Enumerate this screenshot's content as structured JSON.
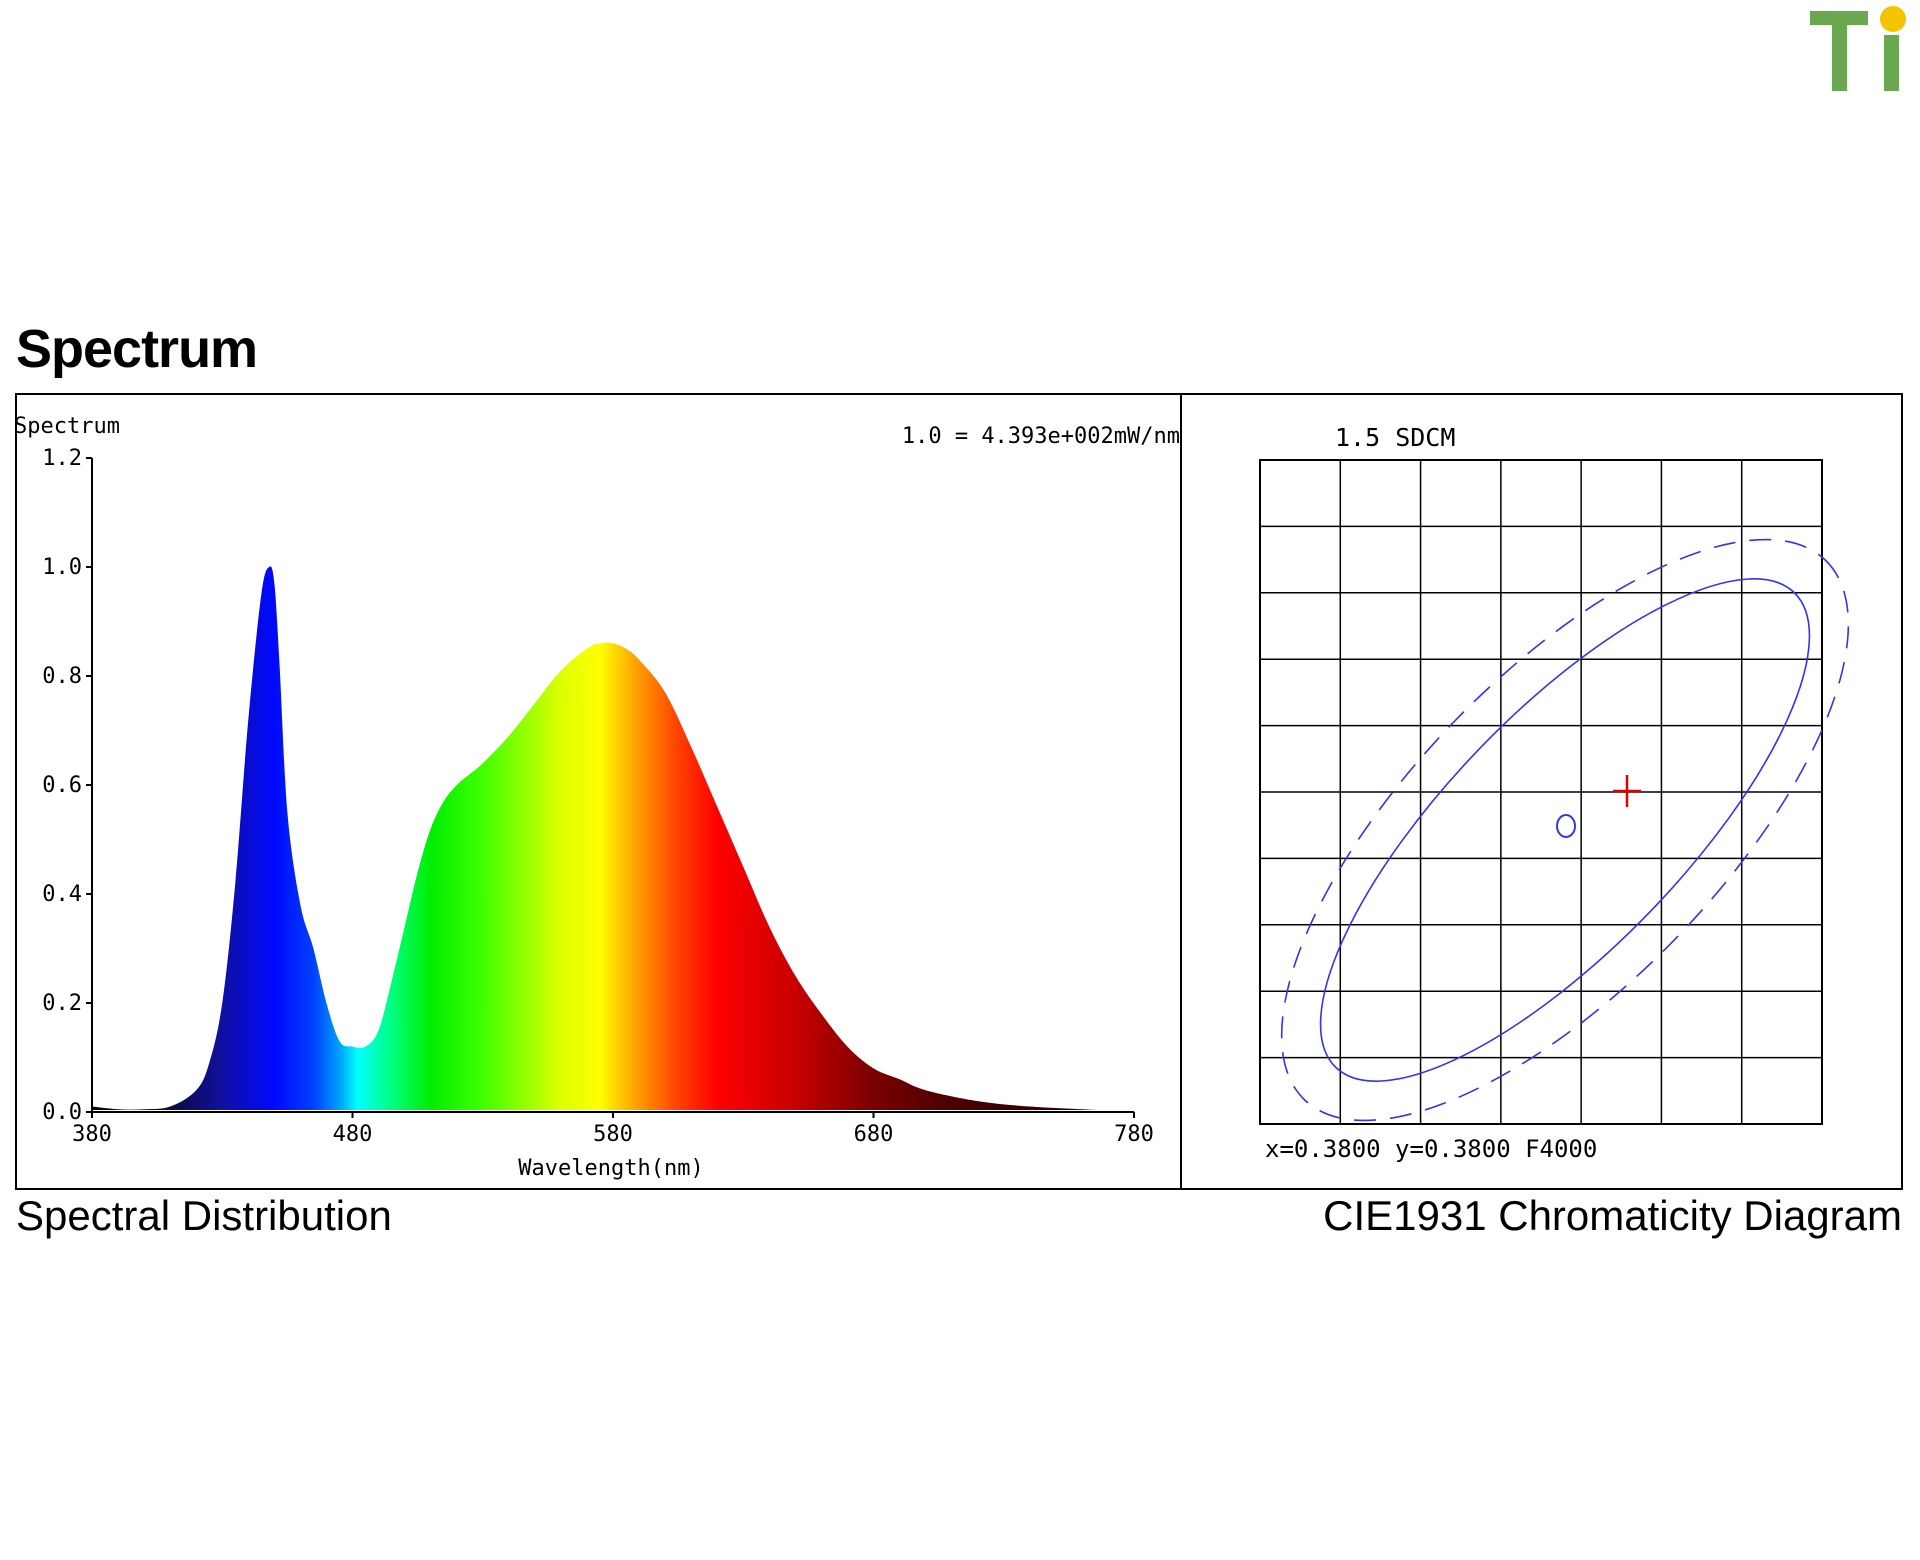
{
  "logo": {
    "text": "Ti",
    "icon": "ti-logo-icon",
    "colors": {
      "letters": "#6aa84f",
      "dot": "#f5c400"
    }
  },
  "section_title": "Spectrum",
  "captions": {
    "left": "Spectral Distribution",
    "right": "CIE1931 Chromaticity Diagram"
  },
  "chart_data": [
    {
      "type": "area",
      "title": "",
      "panel_label": "Spectrum",
      "normalization_note": "1.0 = 4.393e+002mW/nm",
      "xlabel": "Wavelength(nm)",
      "ylabel": "",
      "xlim": [
        380,
        780
      ],
      "ylim": [
        0,
        1.2
      ],
      "x_ticks": [
        "380",
        "480",
        "580",
        "680",
        "780"
      ],
      "y_ticks": [
        "0.0",
        "0.2",
        "0.4",
        "0.6",
        "0.8",
        "1.0",
        "1.2"
      ],
      "grid": false,
      "fill": "wavelength-colored spectrum",
      "series": [
        {
          "x": [
            380,
            390,
            400,
            410,
            420,
            425,
            430,
            435,
            440,
            445,
            448,
            450,
            452,
            455,
            460,
            465,
            470,
            475,
            480,
            485,
            490,
            495,
            500,
            505,
            510,
            515,
            520,
            525,
            530,
            540,
            550,
            560,
            570,
            575,
            580,
            585,
            590,
            600,
            610,
            620,
            630,
            640,
            650,
            660,
            670,
            680,
            690,
            700,
            720,
            740,
            760,
            780
          ],
          "values": [
            0.01,
            0.005,
            0.005,
            0.01,
            0.04,
            0.09,
            0.2,
            0.42,
            0.72,
            0.95,
            1.0,
            0.97,
            0.82,
            0.55,
            0.38,
            0.3,
            0.2,
            0.13,
            0.12,
            0.12,
            0.15,
            0.24,
            0.34,
            0.44,
            0.52,
            0.57,
            0.6,
            0.62,
            0.64,
            0.69,
            0.75,
            0.81,
            0.85,
            0.86,
            0.86,
            0.85,
            0.83,
            0.77,
            0.67,
            0.56,
            0.45,
            0.34,
            0.25,
            0.18,
            0.12,
            0.08,
            0.06,
            0.04,
            0.02,
            0.01,
            0.005,
            0.0
          ]
        }
      ]
    },
    {
      "type": "scatter",
      "title": "1.5 SDCM",
      "readout": "x=0.3800 y=0.3800 F4000",
      "grid": true,
      "grid_cols": 7,
      "grid_rows": 10,
      "measured_point": {
        "x": 0.38,
        "y": 0.38,
        "marker": "cross",
        "color": "#e00000"
      },
      "reference_center": {
        "marker": "circle",
        "color": "#3333ee"
      },
      "ellipse_inner": {
        "style": "solid",
        "color": "#3333ee"
      },
      "ellipse_outer": {
        "style": "dashed",
        "color": "#3333ee"
      }
    }
  ]
}
